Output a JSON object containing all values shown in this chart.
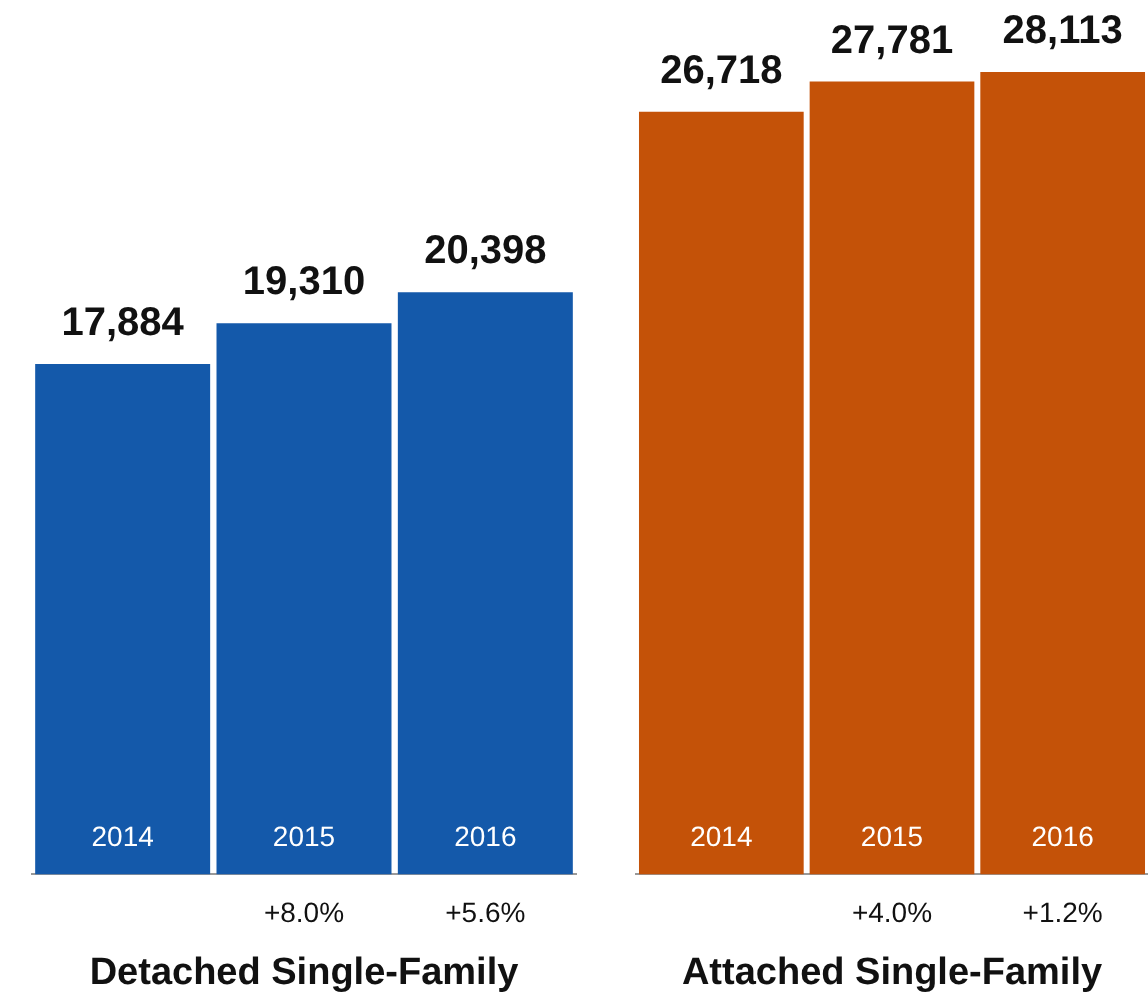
{
  "chart_data": [
    {
      "type": "bar",
      "categories": [
        "2014",
        "2015",
        "2016"
      ],
      "values": [
        17884,
        19310,
        20398
      ],
      "value_labels": [
        "17,884",
        "19,310",
        "20,398"
      ],
      "color": "#1459aa",
      "tick_labels": "x",
      "xlabel": "Detached Single-Family",
      "annotations": [
        "+8.0%",
        "+5.6%"
      ]
    },
    {
      "type": "bar",
      "categories": [
        "2014",
        "2015",
        "2016"
      ],
      "values": [
        26718,
        27781,
        28113
      ],
      "value_labels": [
        "26,718",
        "27,781",
        "28,113"
      ],
      "color": "#c45208",
      "tick_labels": "x",
      "xlabel": "Attached Single-Family",
      "annotations": [
        "+4.0%",
        "+1.2%"
      ]
    }
  ]
}
